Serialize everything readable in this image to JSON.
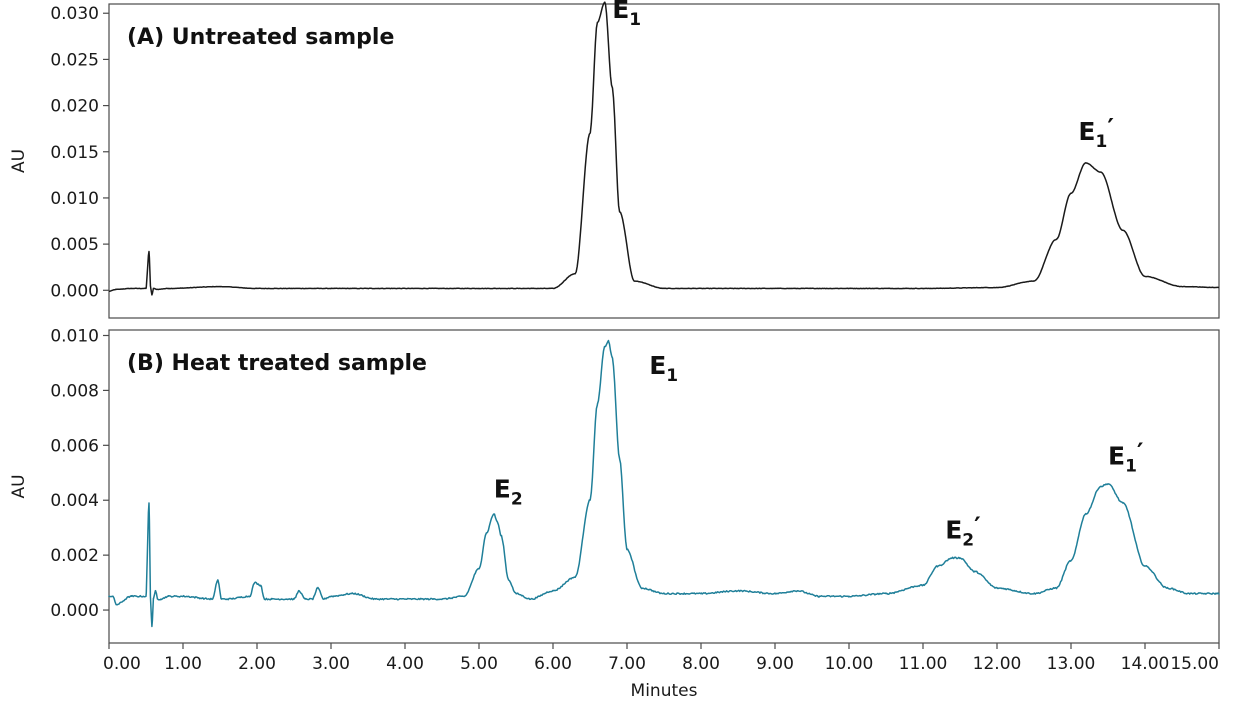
{
  "chart_data": [
    {
      "type": "line",
      "title": "(A) Untreated sample",
      "ylabel": "AU",
      "xlabel": "",
      "xlim": [
        0,
        15
      ],
      "ylim": [
        -0.003,
        0.031
      ],
      "yticks": [
        "0.000",
        "0.005",
        "0.010",
        "0.015",
        "0.020",
        "0.025",
        "0.030"
      ],
      "line_color": "#1a1a1a",
      "series": [
        {
          "baseline": 0.0002,
          "x": [
            0.0,
            0.1,
            0.3,
            0.5,
            0.54,
            0.56,
            0.58,
            0.6,
            0.65,
            0.8,
            1.5,
            2.0,
            3.0,
            4.0,
            5.0,
            6.0,
            6.3,
            6.5,
            6.6,
            6.7,
            6.8,
            6.9,
            7.1,
            7.5,
            8.0,
            9.0,
            10.0,
            11.0,
            12.0,
            12.5,
            12.8,
            13.0,
            13.2,
            13.4,
            13.7,
            14.0,
            14.5,
            15.0
          ],
          "y": [
            -0.0001,
            0.0001,
            0.0002,
            0.0002,
            0.0042,
            0.0005,
            -0.0005,
            0.0002,
            0.0001,
            0.0002,
            0.0004,
            0.0002,
            0.0002,
            0.0002,
            0.0002,
            0.0002,
            0.0018,
            0.017,
            0.029,
            0.0312,
            0.022,
            0.0085,
            0.001,
            0.0002,
            0.0002,
            0.0002,
            0.0002,
            0.0002,
            0.0003,
            0.001,
            0.0055,
            0.0105,
            0.0138,
            0.0128,
            0.0065,
            0.0015,
            0.0004,
            0.0003
          ]
        }
      ],
      "annotations": [
        {
          "text": "E",
          "sub": "1",
          "prime": "",
          "x": 6.8,
          "y": 0.0295
        },
        {
          "text": "E",
          "sub": "1",
          "prime": "′",
          "x": 13.1,
          "y": 0.0163
        }
      ]
    },
    {
      "type": "line",
      "title": "(B) Heat treated sample",
      "ylabel": "AU",
      "xlabel": "Minutes",
      "xlim": [
        0,
        15
      ],
      "ylim": [
        -0.0012,
        0.0102
      ],
      "yticks": [
        "0.000",
        "0.002",
        "0.004",
        "0.006",
        "0.008",
        "0.010"
      ],
      "xticks": [
        "0.00",
        "1.00",
        "2.00",
        "3.00",
        "4.00",
        "5.00",
        "6.00",
        "7.00",
        "8.00",
        "9.00",
        "10.00",
        "11.00",
        "12.00",
        "13.00",
        "14.00",
        "15.00"
      ],
      "line_color": "#1f7f99",
      "series": [
        {
          "x": [
            0.0,
            0.05,
            0.1,
            0.3,
            0.5,
            0.54,
            0.56,
            0.58,
            0.6,
            0.63,
            0.66,
            0.7,
            0.8,
            1.0,
            1.4,
            1.47,
            1.52,
            1.6,
            1.9,
            1.97,
            2.05,
            2.1,
            2.2,
            2.5,
            2.57,
            2.65,
            2.75,
            2.82,
            2.9,
            3.0,
            3.3,
            3.6,
            4.0,
            4.5,
            4.8,
            5.0,
            5.1,
            5.2,
            5.25,
            5.3,
            5.4,
            5.5,
            5.7,
            6.0,
            6.3,
            6.5,
            6.6,
            6.7,
            6.75,
            6.8,
            6.9,
            7.0,
            7.2,
            7.5,
            8.0,
            8.5,
            9.0,
            9.3,
            9.6,
            10.0,
            10.5,
            11.0,
            11.2,
            11.4,
            11.5,
            11.7,
            12.0,
            12.5,
            12.8,
            13.0,
            13.2,
            13.4,
            13.5,
            13.7,
            14.0,
            14.3,
            14.6,
            15.0
          ],
          "y": [
            0.0005,
            0.0005,
            0.0002,
            0.0005,
            0.0005,
            0.0039,
            0.0005,
            -0.0006,
            0.0004,
            0.0007,
            0.0004,
            0.0004,
            0.0005,
            0.0005,
            0.0004,
            0.0011,
            0.0004,
            0.0004,
            0.0005,
            0.001,
            0.0009,
            0.0004,
            0.0004,
            0.0004,
            0.0007,
            0.0004,
            0.0004,
            0.0008,
            0.0004,
            0.0005,
            0.0006,
            0.0004,
            0.0004,
            0.0004,
            0.0005,
            0.0015,
            0.0028,
            0.0035,
            0.0032,
            0.0027,
            0.0011,
            0.0006,
            0.0004,
            0.0007,
            0.0012,
            0.004,
            0.0075,
            0.0096,
            0.0098,
            0.0092,
            0.0055,
            0.0022,
            0.0008,
            0.0006,
            0.0006,
            0.0007,
            0.0006,
            0.0007,
            0.0005,
            0.0005,
            0.0006,
            0.0009,
            0.0016,
            0.0019,
            0.0019,
            0.0014,
            0.0008,
            0.0006,
            0.0008,
            0.0018,
            0.0035,
            0.0045,
            0.0046,
            0.0039,
            0.0016,
            0.0008,
            0.0006,
            0.0006
          ]
        }
      ],
      "annotations": [
        {
          "text": "E",
          "sub": "2",
          "prime": "",
          "x": 5.2,
          "y": 0.0041
        },
        {
          "text": "E",
          "sub": "1",
          "prime": "",
          "x": 7.3,
          "y": 0.0086
        },
        {
          "text": "E",
          "sub": "2",
          "prime": "′",
          "x": 11.3,
          "y": 0.0026
        },
        {
          "text": "E",
          "sub": "1",
          "prime": "′",
          "x": 13.5,
          "y": 0.0053
        }
      ]
    }
  ]
}
